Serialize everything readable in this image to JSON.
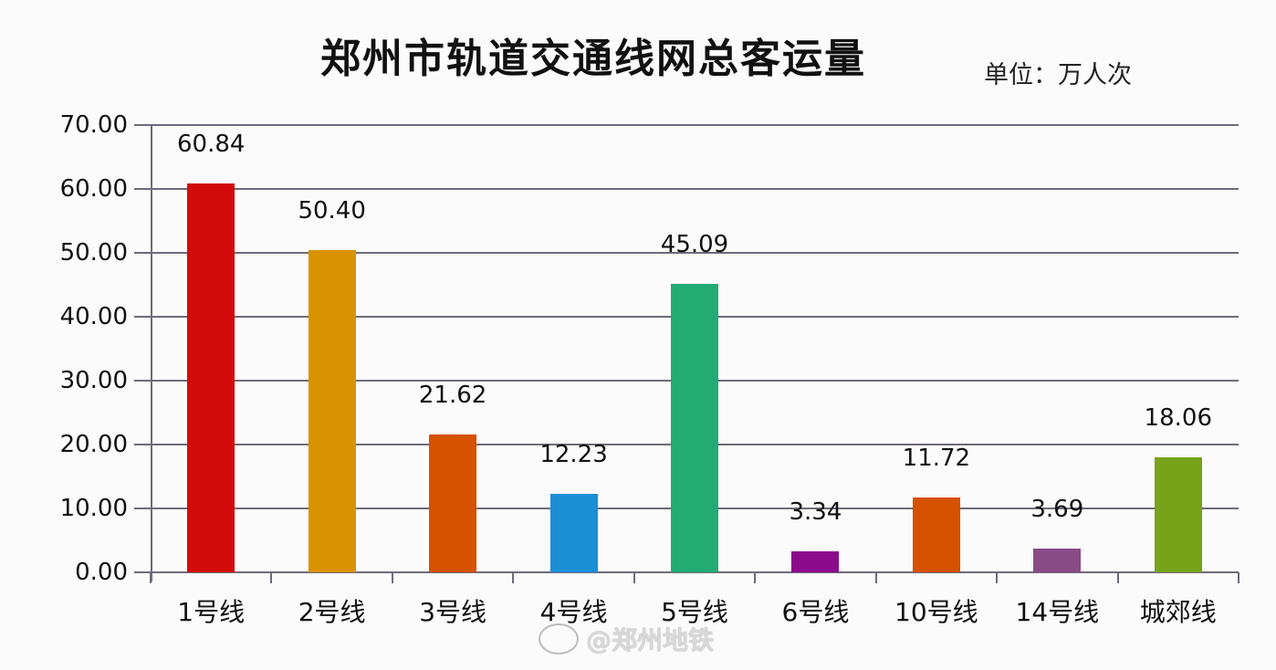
{
  "chart_data": {
    "type": "bar",
    "title": "郑州市轨道交通线网总客运量",
    "unit_label": "单位：万人次",
    "xlabel": "",
    "ylabel": "",
    "ylim": [
      0,
      70
    ],
    "yticks": [
      "0.00",
      "10.00",
      "20.00",
      "30.00",
      "40.00",
      "50.00",
      "60.00",
      "70.00"
    ],
    "grid": true,
    "legend": "none",
    "categories": [
      "1号线",
      "2号线",
      "3号线",
      "4号线",
      "5号线",
      "6号线",
      "10号线",
      "14号线",
      "城郊线"
    ],
    "values": [
      60.84,
      50.4,
      21.62,
      12.23,
      45.09,
      3.34,
      11.72,
      3.69,
      18.06
    ],
    "value_labels": [
      "60.84",
      "50.40",
      "21.62",
      "12.23",
      "45.09",
      "3.34",
      "11.72",
      "3.69",
      "18.06"
    ],
    "colors": [
      "#d20a0a",
      "#d99300",
      "#d65100",
      "#1b8fd6",
      "#22ac74",
      "#8c0a8c",
      "#d65100",
      "#8a4a86",
      "#76a31a"
    ]
  },
  "watermark": {
    "text": "@郑州地铁",
    "icon": "weibo-icon"
  }
}
